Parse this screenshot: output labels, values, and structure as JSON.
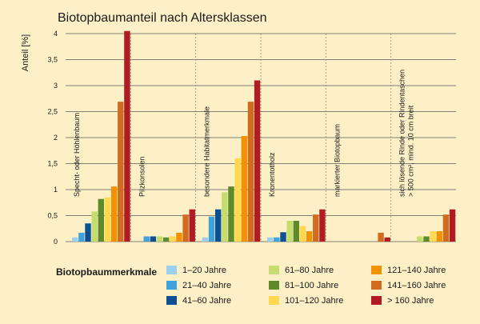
{
  "chart_data": {
    "type": "bar",
    "title": "Biotopbaumanteil nach Altersklassen",
    "ylabel": "Anteil [%]",
    "ylim": [
      0,
      4
    ],
    "yticks": [
      "0",
      "0,5",
      "1",
      "1,5",
      "2",
      "2,5",
      "3",
      "3,5",
      "4"
    ],
    "grid": true,
    "legend_title": "Biotopbaummerkmale",
    "legend_position": "bottom",
    "categories": [
      "Specht- oder Höhlenbaum",
      "Pilzkonsolen",
      "besondere Habitatmerkmale",
      "Kronentotholz",
      "markierter Biotopbaum",
      [
        "sich lösende Rinde oder Rindentaschen",
        "> 500 cm², mind. 10 cm breit"
      ]
    ],
    "series": [
      {
        "name": "1–20 Jahre",
        "color": "#9dcfee",
        "values": [
          0.08,
          0.0,
          0.08,
          0.08,
          0.0,
          0.0
        ]
      },
      {
        "name": "21–40 Jahre",
        "color": "#3fa2dc",
        "values": [
          0.17,
          0.1,
          0.48,
          0.08,
          0.0,
          0.0
        ]
      },
      {
        "name": "41–60 Jahre",
        "color": "#0d4f93",
        "values": [
          0.35,
          0.1,
          0.62,
          0.18,
          0.0,
          0.0
        ]
      },
      {
        "name": "61–80 Jahre",
        "color": "#c5dc6e",
        "values": [
          0.58,
          0.1,
          0.95,
          0.4,
          0.0,
          0.1
        ]
      },
      {
        "name": "81–100 Jahre",
        "color": "#5f8a2a",
        "values": [
          0.82,
          0.08,
          1.06,
          0.4,
          0.0,
          0.1
        ]
      },
      {
        "name": "101–120 Jahre",
        "color": "#ffd84d",
        "values": [
          0.85,
          0.1,
          1.6,
          0.3,
          0.0,
          0.2
        ]
      },
      {
        "name": "121–140 Jahre",
        "color": "#f39200",
        "values": [
          1.06,
          0.17,
          2.03,
          0.2,
          0.0,
          0.2
        ]
      },
      {
        "name": "141–160 Jahre",
        "color": "#d06b20",
        "values": [
          2.69,
          0.52,
          2.69,
          0.52,
          0.17,
          0.52
        ]
      },
      {
        "name": "> 160 Jahre",
        "color": "#b01c21",
        "values": [
          4.05,
          0.62,
          3.1,
          0.62,
          0.08,
          0.62
        ]
      }
    ]
  }
}
